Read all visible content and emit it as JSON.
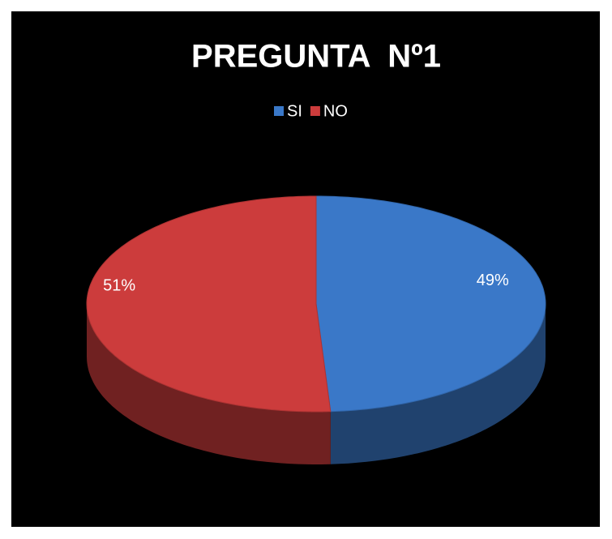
{
  "chart_data": {
    "type": "pie",
    "title": "PREGUNTA  Nº1",
    "categories": [
      "SI",
      "NO"
    ],
    "values": [
      49,
      51
    ],
    "value_labels": [
      "49%",
      "51%"
    ],
    "colors": [
      "#3a78c8",
      "#cc3c3c"
    ],
    "legend": "top"
  }
}
